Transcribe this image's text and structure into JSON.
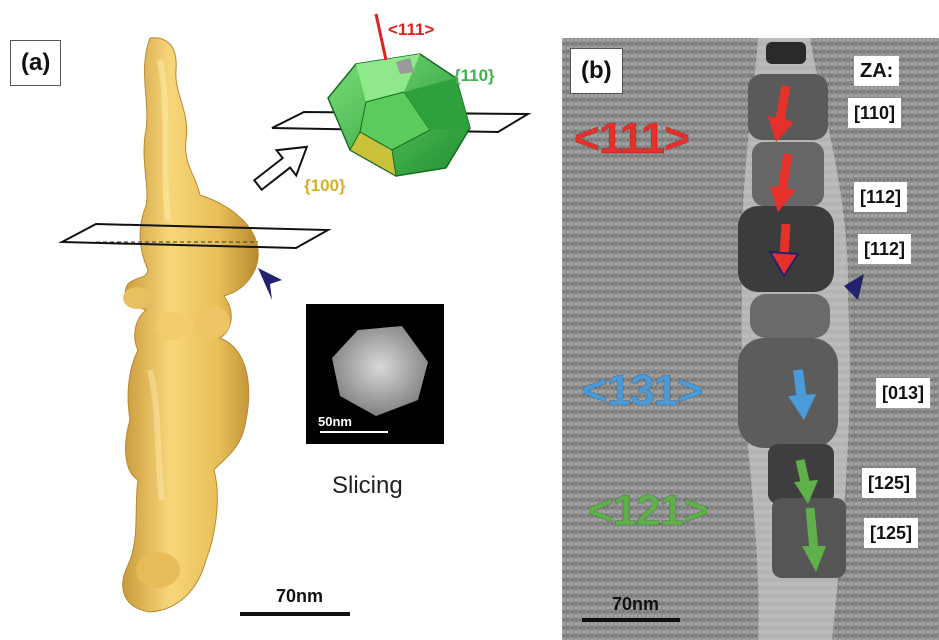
{
  "panel_a": {
    "tag": "(a)",
    "direction_label": "<111>",
    "facet_110": "{110}",
    "facet_100": "{100}",
    "inset_scale": "50nm",
    "slicing_label": "Slicing",
    "scale_bar": "70nm"
  },
  "panel_b": {
    "tag": "(b)",
    "za_header": "ZA:",
    "zone_axes": [
      "[110]",
      "[112]",
      "[112]",
      "[013]",
      "[125]",
      "[125]"
    ],
    "directions": [
      {
        "text": "<111>",
        "color": "#e8302a"
      },
      {
        "text": "<131>",
        "color": "#4a9bd8"
      },
      {
        "text": "<121>",
        "color": "#5fb04a"
      }
    ],
    "scale_bar": "70nm"
  },
  "colors": {
    "nanowire": "#f0c860",
    "crystal_green": "#3ab54a",
    "crystal_yellow": "#c8c040",
    "marker": "#22226e",
    "arrow_red": "#e8302a",
    "arrow_blue": "#4a9bd8",
    "arrow_green": "#5fb04a"
  }
}
